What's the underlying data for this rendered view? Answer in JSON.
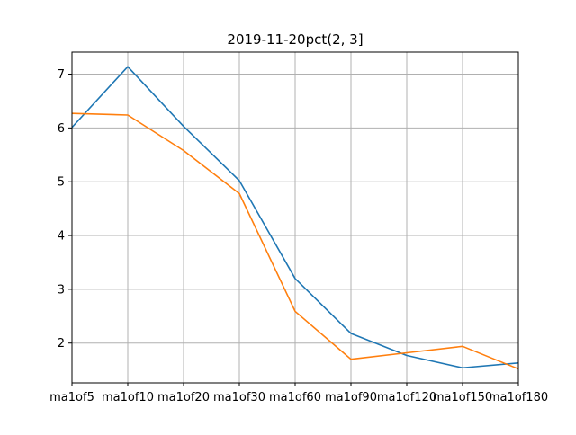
{
  "chart_data": {
    "type": "line",
    "title": "2019-11-20pct(2, 3]",
    "xlabel": "",
    "ylabel": "",
    "categories": [
      "ma1of5",
      "ma1of10",
      "ma1of20",
      "ma1of30",
      "ma1of60",
      "ma1of90",
      "ma1of120",
      "ma1of150",
      "ma1of180"
    ],
    "yticks": [
      2,
      3,
      4,
      5,
      6,
      7
    ],
    "ylim": [
      1.26,
      7.41
    ],
    "grid": true,
    "series": [
      {
        "color": "#1f77b4",
        "values": [
          6.01,
          7.14,
          6.03,
          5.02,
          3.2,
          2.18,
          1.77,
          1.54,
          1.63
        ]
      },
      {
        "color": "#ff7f0e",
        "values": [
          6.27,
          6.24,
          5.58,
          4.78,
          2.59,
          1.7,
          1.82,
          1.94,
          1.52
        ]
      }
    ]
  }
}
